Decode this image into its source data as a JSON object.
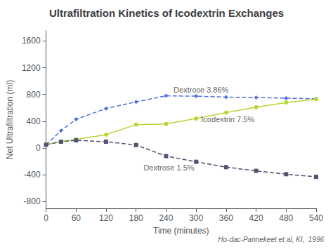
{
  "chart_data": {
    "type": "line",
    "title": "Ultrafiltration Kinetics of Icodextrin Exchanges",
    "xlabel": "Time (minutes)",
    "ylabel": "Net Ultrafiltration (ml)",
    "caption": "Ho-dac-Pannekeet et al, KI,  1996",
    "xlim": [
      0,
      540
    ],
    "xticks": [
      0,
      60,
      120,
      180,
      240,
      300,
      360,
      420,
      480,
      540
    ],
    "ylim": [
      -900,
      1750
    ],
    "yticks": [
      -800,
      -400,
      0,
      400,
      800,
      1200,
      1600
    ],
    "grid": false,
    "legend": false,
    "series": [
      {
        "name": "Dextrose 3.86%",
        "x": [
          0,
          30,
          60,
          120,
          180,
          240,
          300,
          360,
          420,
          480,
          540
        ],
        "values": [
          50,
          260,
          430,
          590,
          690,
          780,
          775,
          760,
          755,
          745,
          735
        ],
        "marker": "diamond",
        "line_style": "dashed"
      },
      {
        "name": "Icodextrin 7.5%",
        "x": [
          0,
          30,
          60,
          120,
          180,
          240,
          300,
          360,
          420,
          480,
          540
        ],
        "values": [
          50,
          95,
          130,
          200,
          350,
          360,
          440,
          530,
          610,
          680,
          730
        ],
        "marker": "circle",
        "line_style": "solid"
      },
      {
        "name": "Dextrose 1.5%",
        "x": [
          0,
          30,
          60,
          120,
          180,
          240,
          300,
          360,
          420,
          480,
          540
        ],
        "values": [
          50,
          95,
          115,
          95,
          45,
          -120,
          -205,
          -285,
          -340,
          -390,
          -430
        ],
        "marker": "square",
        "line_style": "dashed"
      }
    ],
    "annotations": [
      {
        "text": "Dextrose 3.86%",
        "x": 255,
        "y": 870
      },
      {
        "text": "Icodextrin 7.5%",
        "x": 310,
        "y": 430
      },
      {
        "text": "Dextrose 1.5%",
        "x": 195,
        "y": -290
      }
    ]
  }
}
